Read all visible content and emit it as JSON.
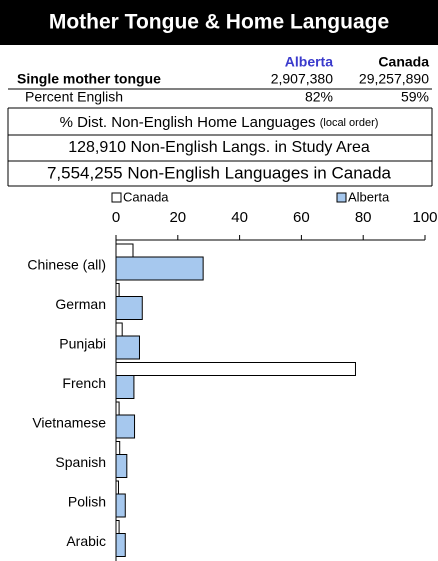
{
  "header": {
    "title": "Mother Tongue & Home Language"
  },
  "table": {
    "columns": [
      "Alberta",
      "Canada"
    ],
    "rows": [
      {
        "label": "Single mother tongue",
        "cells": [
          "2,907,380",
          "29,257,890"
        ]
      },
      {
        "label": "Percent English",
        "cells": [
          "82%",
          "59%"
        ]
      }
    ]
  },
  "notes": {
    "dist": "% Dist. Non-English Home Languages",
    "dist_small": "(local order)",
    "study": "128,910 Non-English Langs. in Study Area",
    "canada": "7,554,255 Non-English Languages in Canada"
  },
  "chart_data": {
    "type": "hbar",
    "categories": [
      "Chinese (all)",
      "German",
      "Punjabi",
      "French",
      "Vietnamese",
      "Spanish",
      "Polish",
      "Arabic"
    ],
    "series": [
      {
        "name": "Canada",
        "color": "#ffffff",
        "values": [
          5.5,
          1,
          2,
          77.5,
          1,
          1.2,
          0.8,
          1
        ]
      },
      {
        "name": "Alberta",
        "color": "#a6c8ee",
        "values": [
          28.2,
          8.5,
          7.6,
          5.8,
          6,
          3.5,
          3,
          3
        ]
      }
    ],
    "xlim": [
      0,
      100
    ],
    "xticks": [
      0,
      20,
      40,
      60,
      80,
      100
    ]
  }
}
